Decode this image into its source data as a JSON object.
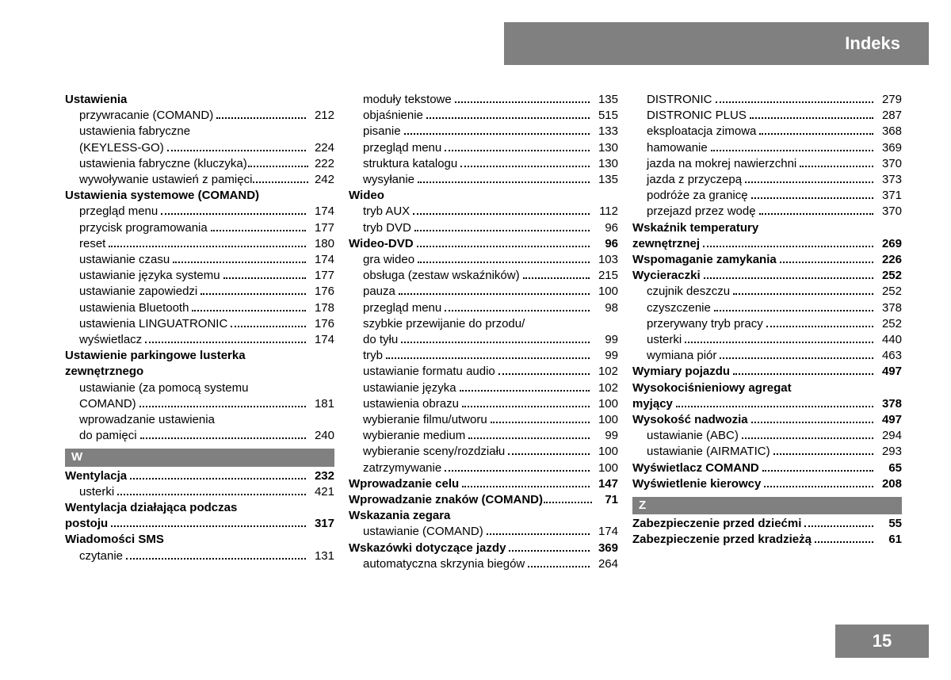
{
  "header": {
    "title": "Indeks"
  },
  "footer": {
    "page": "15"
  },
  "columns": [
    {
      "items": [
        {
          "type": "heading",
          "text": "Ustawienia"
        },
        {
          "type": "sub",
          "text": "przywracanie (COMAND)",
          "page": "212"
        },
        {
          "type": "subtext",
          "text": "ustawienia fabryczne"
        },
        {
          "type": "sub",
          "text": "(KEYLESS-GO)",
          "page": "224"
        },
        {
          "type": "sub",
          "text": "ustawienia fabryczne (kluczyka)",
          "page": "222",
          "tight": true
        },
        {
          "type": "sub",
          "text": "wywoływanie ustawień z pamięci",
          "page": "242",
          "tight": true
        },
        {
          "type": "heading",
          "text": "Ustawienia systemowe (COMAND)"
        },
        {
          "type": "sub",
          "text": "przegląd menu",
          "page": "174"
        },
        {
          "type": "sub",
          "text": "przycisk programowania",
          "page": "177"
        },
        {
          "type": "sub",
          "text": "reset",
          "page": "180"
        },
        {
          "type": "sub",
          "text": "ustawianie czasu",
          "page": "174"
        },
        {
          "type": "sub",
          "text": "ustawianie języka systemu",
          "page": "177"
        },
        {
          "type": "sub",
          "text": "ustawianie zapowiedzi",
          "page": "176"
        },
        {
          "type": "sub",
          "text": "ustawienia Bluetooth",
          "page": "178"
        },
        {
          "type": "sub",
          "text": "ustawienia LINGUATRONIC",
          "page": "176"
        },
        {
          "type": "sub",
          "text": "wyświetlacz",
          "page": "174"
        },
        {
          "type": "heading",
          "text": "Ustawienie parkingowe lusterka"
        },
        {
          "type": "heading",
          "text": "zewnętrznego"
        },
        {
          "type": "subtext",
          "text": "ustawianie (za pomocą systemu"
        },
        {
          "type": "sub",
          "text": "COMAND)",
          "page": "181"
        },
        {
          "type": "subtext",
          "text": "wprowadzanie ustawienia"
        },
        {
          "type": "sub",
          "text": "do pamięci",
          "page": "240"
        },
        {
          "type": "letter",
          "text": "W"
        },
        {
          "type": "topbold",
          "text": "Wentylacja",
          "page": "232"
        },
        {
          "type": "sub",
          "text": "usterki",
          "page": "421"
        },
        {
          "type": "heading",
          "text": "Wentylacja działająca podczas"
        },
        {
          "type": "topbold",
          "text": "postoju",
          "page": "317"
        },
        {
          "type": "heading",
          "text": "Wiadomości SMS"
        },
        {
          "type": "sub",
          "text": "czytanie",
          "page": "131"
        }
      ]
    },
    {
      "items": [
        {
          "type": "sub",
          "text": "moduły tekstowe",
          "page": "135"
        },
        {
          "type": "sub",
          "text": "objaśnienie",
          "page": "515"
        },
        {
          "type": "sub",
          "text": "pisanie",
          "page": "133"
        },
        {
          "type": "sub",
          "text": "przegląd menu",
          "page": "130"
        },
        {
          "type": "sub",
          "text": "struktura katalogu",
          "page": "130"
        },
        {
          "type": "sub",
          "text": "wysyłanie",
          "page": "135"
        },
        {
          "type": "heading",
          "text": "Wideo"
        },
        {
          "type": "sub",
          "text": "tryb AUX",
          "page": "112"
        },
        {
          "type": "sub",
          "text": "tryb DVD",
          "page": "96"
        },
        {
          "type": "topbold",
          "text": "Wideo-DVD",
          "page": "96"
        },
        {
          "type": "sub",
          "text": "gra wideo",
          "page": "103"
        },
        {
          "type": "sub",
          "text": "obsługa (zestaw wskaźników)",
          "page": "215"
        },
        {
          "type": "sub",
          "text": "pauza",
          "page": "100"
        },
        {
          "type": "sub",
          "text": "przegląd menu",
          "page": "98"
        },
        {
          "type": "subtext",
          "text": "szybkie przewijanie do przodu/"
        },
        {
          "type": "sub",
          "text": "do tyłu",
          "page": "99"
        },
        {
          "type": "sub",
          "text": "tryb",
          "page": "99"
        },
        {
          "type": "sub",
          "text": "ustawianie formatu audio",
          "page": "102"
        },
        {
          "type": "sub",
          "text": "ustawianie języka",
          "page": "102"
        },
        {
          "type": "sub",
          "text": "ustawienia obrazu",
          "page": "100"
        },
        {
          "type": "sub",
          "text": "wybieranie filmu/utworu",
          "page": "100"
        },
        {
          "type": "sub",
          "text": "wybieranie medium",
          "page": "99"
        },
        {
          "type": "sub",
          "text": "wybieranie sceny/rozdziału",
          "page": "100"
        },
        {
          "type": "sub",
          "text": "zatrzymywanie",
          "page": "100"
        },
        {
          "type": "topbold",
          "text": "Wprowadzanie celu",
          "page": "147"
        },
        {
          "type": "topboldtight",
          "text": "Wprowadzanie znaków (COMAND)",
          "page": "71"
        },
        {
          "type": "heading",
          "text": "Wskazania zegara"
        },
        {
          "type": "sub",
          "text": "ustawianie (COMAND)",
          "page": "174"
        },
        {
          "type": "topbold",
          "text": "Wskazówki dotyczące jazdy",
          "page": "369"
        },
        {
          "type": "sub",
          "text": "automatyczna skrzynia biegów",
          "page": "264"
        }
      ]
    },
    {
      "items": [
        {
          "type": "sub",
          "text": "DISTRONIC",
          "page": "279"
        },
        {
          "type": "sub",
          "text": "DISTRONIC PLUS",
          "page": "287"
        },
        {
          "type": "sub",
          "text": "eksploatacja zimowa",
          "page": "368"
        },
        {
          "type": "sub",
          "text": "hamowanie",
          "page": "369"
        },
        {
          "type": "sub",
          "text": "jazda na mokrej nawierzchni",
          "page": "370"
        },
        {
          "type": "sub",
          "text": "jazda z przyczepą",
          "page": "373"
        },
        {
          "type": "sub",
          "text": "podróże za granicę",
          "page": "371"
        },
        {
          "type": "sub",
          "text": "przejazd przez wodę",
          "page": "370"
        },
        {
          "type": "heading",
          "text": "Wskaźnik temperatury"
        },
        {
          "type": "topbold",
          "text": "zewnętrznej",
          "page": "269"
        },
        {
          "type": "topbold",
          "text": "Wspomaganie zamykania",
          "page": "226"
        },
        {
          "type": "topbold",
          "text": "Wycieraczki",
          "page": "252"
        },
        {
          "type": "sub",
          "text": "czujnik deszczu",
          "page": "252"
        },
        {
          "type": "sub",
          "text": "czyszczenie",
          "page": "378"
        },
        {
          "type": "sub",
          "text": "przerywany tryb pracy",
          "page": "252"
        },
        {
          "type": "sub",
          "text": "usterki",
          "page": "440"
        },
        {
          "type": "sub",
          "text": "wymiana piór",
          "page": "463"
        },
        {
          "type": "topbold",
          "text": "Wymiary pojazdu",
          "page": "497"
        },
        {
          "type": "heading",
          "text": "Wysokociśnieniowy agregat"
        },
        {
          "type": "topbold",
          "text": "myjący",
          "page": "378"
        },
        {
          "type": "topbold",
          "text": "Wysokość nadwozia",
          "page": "497"
        },
        {
          "type": "sub",
          "text": "ustawianie (ABC)",
          "page": "294"
        },
        {
          "type": "sub",
          "text": "ustawianie (AIRMATIC)",
          "page": "293"
        },
        {
          "type": "topbold",
          "text": "Wyświetlacz COMAND",
          "page": "65"
        },
        {
          "type": "topbold",
          "text": "Wyświetlenie kierowcy",
          "page": "208"
        },
        {
          "type": "letter",
          "text": "Z"
        },
        {
          "type": "topbold",
          "text": "Zabezpieczenie przed dziećmi",
          "page": "55"
        },
        {
          "type": "topbold",
          "text": "Zabezpieczenie przed kradzieżą",
          "page": "61"
        }
      ]
    }
  ]
}
